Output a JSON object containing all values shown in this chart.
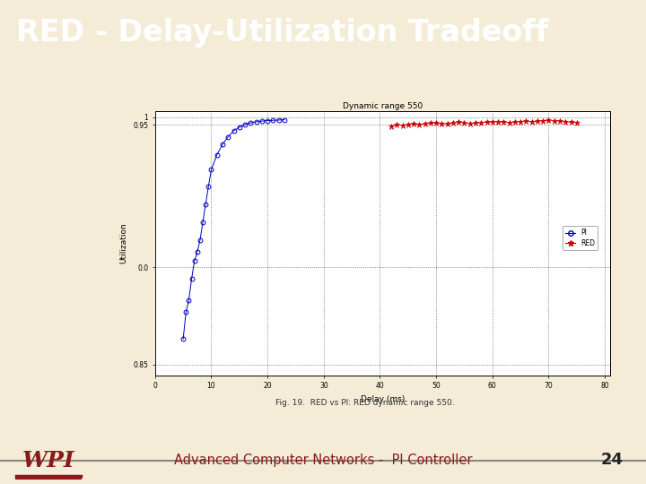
{
  "title": "RED - Delay-Utilization Tradeoff",
  "title_bg": "#8B1A1A",
  "title_fg": "#FFFFFF",
  "slide_bg": "#F5ECD8",
  "footer_bg": "#C8C3BB",
  "footer_text": "Advanced Computer Networks -  PI Controller",
  "footer_num": "24",
  "chart_title": "Dynamic range 550",
  "xlabel": "Delay (ms)",
  "ylabel": "Utilization",
  "caption": "Fig. 19.  RED vs PI: RED dynamic range 550.",
  "pi_delay": [
    5,
    5.5,
    6,
    6.5,
    7,
    7.5,
    8,
    8.5,
    9,
    9.5,
    10,
    11,
    12,
    13,
    14,
    15,
    16,
    17,
    18,
    19,
    20,
    21,
    22,
    23
  ],
  "pi_util": [
    -0.48,
    -0.3,
    -0.22,
    -0.08,
    0.04,
    0.1,
    0.18,
    0.3,
    0.42,
    0.54,
    0.65,
    0.75,
    0.82,
    0.87,
    0.91,
    0.935,
    0.952,
    0.963,
    0.97,
    0.975,
    0.978,
    0.98,
    0.982,
    0.984
  ],
  "red_delay": [
    42,
    43,
    44,
    45,
    46,
    47,
    48,
    49,
    50,
    51,
    52,
    53,
    54,
    55,
    56,
    57,
    58,
    59,
    60,
    61,
    62,
    63,
    64,
    65,
    66,
    67,
    68,
    69,
    70,
    71,
    72,
    73,
    74,
    75
  ],
  "red_util": [
    0.942,
    0.95,
    0.946,
    0.953,
    0.956,
    0.95,
    0.957,
    0.961,
    0.963,
    0.958,
    0.956,
    0.962,
    0.967,
    0.964,
    0.958,
    0.962,
    0.964,
    0.967,
    0.969,
    0.971,
    0.967,
    0.964,
    0.969,
    0.971,
    0.974,
    0.969,
    0.974,
    0.977,
    0.979,
    0.974,
    0.977,
    0.971,
    0.967,
    0.964
  ],
  "xlim": [
    0,
    81
  ],
  "ylim": [
    -0.72,
    1.04
  ],
  "xticks": [
    0,
    10,
    20,
    30,
    40,
    50,
    60,
    70,
    80
  ],
  "yticks": [
    -0.65,
    0.0,
    0.95,
    1.0
  ],
  "ytick_labels": [
    "0.85",
    "0.0",
    "0.95",
    "1"
  ],
  "pi_color": "#0000BB",
  "red_color": "#CC0000",
  "wpi_red": "#8B1A1A"
}
